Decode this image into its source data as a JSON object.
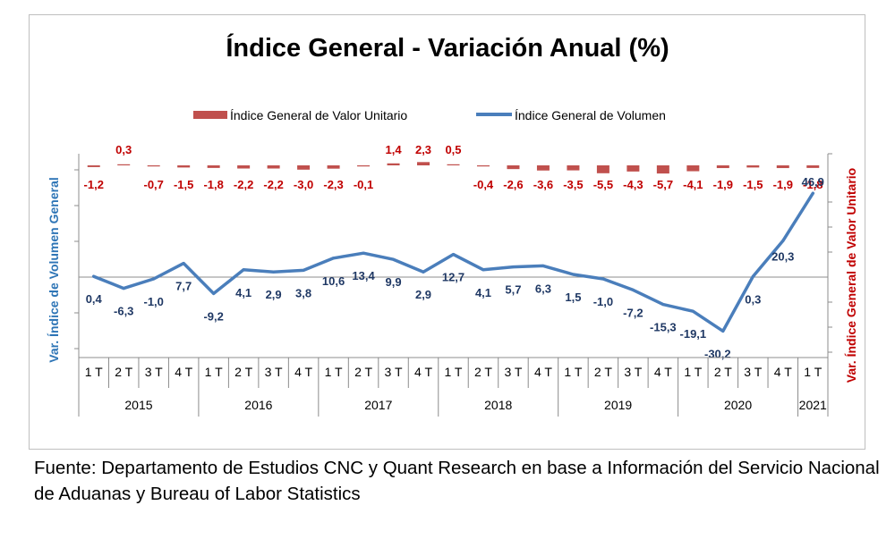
{
  "source_note": "Fuente: Departamento de Estudios CNC y Quant Research en base a Información del Servicio Nacional de Aduanas y Bureau of Labor Statistics",
  "chart_data": {
    "type": "line",
    "title": "Índice General - Variación Anual (%)",
    "left_axis_label": "Var. Índice de Volumen General",
    "right_axis_label": "Var. Índice General de Valor Unitario",
    "legend_position": "top",
    "grid": false,
    "categories": [
      "1 T",
      "2 T",
      "3 T",
      "4 T",
      "1 T",
      "2 T",
      "3 T",
      "4 T",
      "1 T",
      "2 T",
      "3 T",
      "4 T",
      "1 T",
      "2 T",
      "3 T",
      "4 T",
      "1 T",
      "2 T",
      "3 T",
      "4 T",
      "1 T",
      "2 T",
      "3 T",
      "4 T",
      "1 T"
    ],
    "years": [
      {
        "label": "2015",
        "quarters": 4
      },
      {
        "label": "2016",
        "quarters": 4
      },
      {
        "label": "2017",
        "quarters": 4
      },
      {
        "label": "2018",
        "quarters": 4
      },
      {
        "label": "2019",
        "quarters": 4
      },
      {
        "label": "2020",
        "quarters": 4
      },
      {
        "label": "2021",
        "quarters": 1
      }
    ],
    "series": [
      {
        "name": "Índice General de Valor Unitario",
        "type": "bar",
        "color": "#c0504d",
        "values": [
          -1.2,
          0.3,
          -0.7,
          -1.5,
          -1.8,
          -2.2,
          -2.2,
          -3.0,
          -2.3,
          -0.1,
          1.4,
          2.3,
          0.5,
          -0.4,
          -2.6,
          -3.6,
          -3.5,
          -5.5,
          -4.3,
          -5.7,
          -4.1,
          -1.9,
          -1.5,
          -1.9,
          -1.8
        ],
        "labels": [
          "-1,2",
          "0,3",
          "-0,7",
          "-1,5",
          "-1,8",
          "-2,2",
          "-2,2",
          "-3,0",
          "-2,3",
          "-0,1",
          "1,4",
          "2,3",
          "0,5",
          "-0,4",
          "-2,6",
          "-3,6",
          "-3,5",
          "-5,5",
          "-4,3",
          "-5,7",
          "-4,1",
          "-1,9",
          "-1,5",
          "-1,9",
          "-1,8"
        ]
      },
      {
        "name": "Índice General de Volumen",
        "type": "line",
        "color": "#4a7ebb",
        "values": [
          0.4,
          -6.3,
          -1.0,
          7.7,
          -9.2,
          4.1,
          2.9,
          3.8,
          10.6,
          13.4,
          9.9,
          2.9,
          12.7,
          4.1,
          5.7,
          6.3,
          1.5,
          -1.0,
          -7.2,
          -15.3,
          -19.1,
          -30.2,
          0.3,
          20.3,
          46.9
        ],
        "labels": [
          "0,4",
          "-6,3",
          "-1,0",
          "7,7",
          "-9,2",
          "4,1",
          "2,9",
          "3,8",
          "10,6",
          "13,4",
          "9,9",
          "2,9",
          "12,7",
          "4,1",
          "5,7",
          "6,3",
          "1,5",
          "-1,0",
          "-7,2",
          "-15,3",
          "-19,1",
          "-30,2",
          "0,3",
          "20,3",
          "46,9"
        ]
      }
    ]
  }
}
